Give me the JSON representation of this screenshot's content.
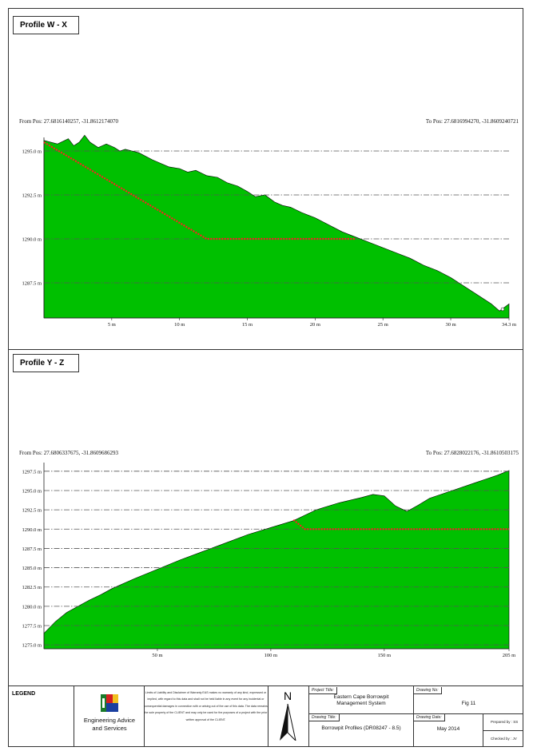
{
  "profiles": [
    {
      "title": "Profile W - X",
      "from_pos": "From Pos: 27.6816140257, -31.8612174070",
      "to_pos": "To Pos: 27.6816994270, -31.8609240721"
    },
    {
      "title": "Profile Y - Z",
      "from_pos": "From Pos: 27.6806337675, -31.8609686293",
      "to_pos": "To Pos: 27.6828022176, -31.8610503175"
    }
  ],
  "chart_data": [
    {
      "type": "area",
      "title": "Profile W - X",
      "xlabel": "",
      "ylabel": "",
      "xlim": [
        0,
        34.3
      ],
      "ylim": [
        1285.5,
        1295.5
      ],
      "x_ticks": [
        5,
        10,
        15,
        20,
        25,
        30,
        34.3
      ],
      "x_tick_labels": [
        "5 m",
        "10 m",
        "15 m",
        "20 m",
        "25 m",
        "30 m",
        "34.3 m"
      ],
      "y_ticks": [
        1287.5,
        1290.0,
        1292.5,
        1295.0
      ],
      "y_tick_labels": [
        "1287.5 m",
        "1290.0 m",
        "1292.5 m",
        "1295.0 m"
      ],
      "grid": "horizontal dash-dot",
      "terrain": {
        "x": [
          0,
          1,
          1.8,
          2.2,
          2.6,
          3,
          3.4,
          4,
          4.6,
          5.2,
          5.6,
          6,
          7,
          8,
          8.6,
          9.2,
          10,
          10.6,
          11.2,
          12,
          12.8,
          13.5,
          14.3,
          15,
          15.6,
          16.3,
          17,
          17.6,
          18.2,
          19,
          20,
          21,
          22,
          23,
          24,
          25,
          26,
          27,
          28,
          29,
          30,
          31,
          32,
          33,
          33.6,
          34.3
        ],
        "y": [
          1295.6,
          1295.4,
          1295.7,
          1295.3,
          1295.5,
          1295.9,
          1295.5,
          1295.2,
          1295.4,
          1295.2,
          1295.0,
          1295.1,
          1294.9,
          1294.5,
          1294.3,
          1294.1,
          1294.0,
          1293.8,
          1293.9,
          1293.6,
          1293.5,
          1293.2,
          1293.0,
          1292.7,
          1292.4,
          1292.5,
          1292.1,
          1291.9,
          1291.8,
          1291.5,
          1291.2,
          1290.8,
          1290.4,
          1290.1,
          1289.8,
          1289.5,
          1289.2,
          1288.9,
          1288.5,
          1288.2,
          1287.8,
          1287.3,
          1286.8,
          1286.3,
          1285.9,
          1286.3
        ]
      },
      "design_level": {
        "x": [
          0,
          12,
          23
        ],
        "y": [
          1295.5,
          1290.0,
          1290.0
        ]
      },
      "colors": {
        "terrain": "#00c000",
        "design": "#ff2020",
        "grid": "#555555"
      }
    },
    {
      "type": "area",
      "title": "Profile Y - Z",
      "xlabel": "",
      "ylabel": "",
      "xlim": [
        0,
        205
      ],
      "ylim": [
        1274.5,
        1298
      ],
      "x_ticks": [
        50,
        100,
        150,
        205
      ],
      "x_tick_labels": [
        "50 m",
        "100 m",
        "150 m",
        "205 m"
      ],
      "y_ticks": [
        1275.0,
        1277.5,
        1280.0,
        1282.5,
        1285.0,
        1287.5,
        1290.0,
        1292.5,
        1295.0,
        1297.5
      ],
      "y_tick_labels": [
        "1275.0 m",
        "1277.5 m",
        "1280.0 m",
        "1282.5 m",
        "1285.0 m",
        "1287.5 m",
        "1290.0 m",
        "1292.5 m",
        "1295.0 m",
        "1297.5 m"
      ],
      "grid": "horizontal dash-dot",
      "terrain": {
        "x": [
          0,
          5,
          10,
          15,
          20,
          25,
          30,
          40,
          50,
          60,
          70,
          80,
          90,
          100,
          110,
          115,
          120,
          130,
          140,
          145,
          150,
          155,
          160,
          165,
          170,
          180,
          190,
          195,
          200,
          205
        ],
        "y": [
          1276.5,
          1278.0,
          1279.2,
          1280.0,
          1280.8,
          1281.5,
          1282.3,
          1283.6,
          1284.8,
          1286.0,
          1287.1,
          1288.2,
          1289.3,
          1290.2,
          1291.1,
          1291.8,
          1292.5,
          1293.4,
          1294.1,
          1294.5,
          1294.3,
          1293.0,
          1292.3,
          1293.1,
          1294.0,
          1295.0,
          1296.0,
          1296.5,
          1297.0,
          1297.6
        ]
      },
      "design_level": {
        "x": [
          110,
          115,
          205
        ],
        "y": [
          1291.2,
          1290.0,
          1290.0
        ]
      },
      "colors": {
        "terrain": "#00c000",
        "design": "#ff2020",
        "grid": "#555555"
      }
    }
  ],
  "legend": {
    "label": "LEGEND",
    "company_line1": "Engineering Advice",
    "company_line2": "and Services",
    "logo_letters": "EAS",
    "disclaimer": "Limits of Liability and Disclaimer of Warranty EAS makes no warranty of any kind, expressed or implied, with regard to this data and shall not be held liable in any event for any incidental or consequential damages in connection with or arising out of the use of this data. The data remains the sole property of the CLIENT and may only be used for the purposes of a project with the prior written approval of the CLIENT.",
    "north_letter": "N",
    "project_title_label": "Project Title:",
    "project_title_line1": "Eastern Cape Borrowpit",
    "project_title_line2": "Management System",
    "drawing_title_label": "Drawing Title:",
    "drawing_title": "Borrowpit Profiles (DR08247 - 8.5)",
    "drawing_no_label": "Drawing No:",
    "drawing_no": "Fig 11",
    "drawing_date_label": "Drawing Date:",
    "drawing_date": "May 2014",
    "prepared_by": "Prepared by : SS",
    "checked_by": "Checked by : JV"
  }
}
